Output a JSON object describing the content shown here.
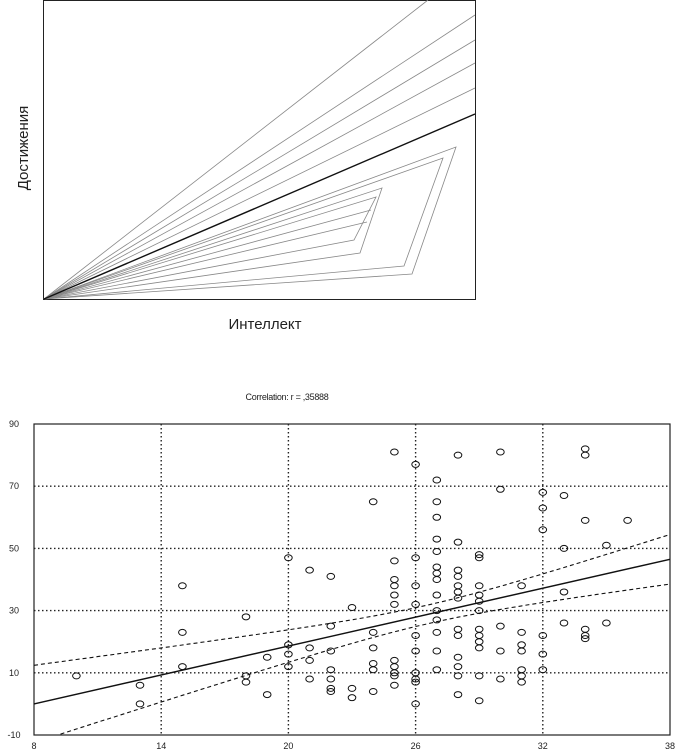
{
  "chart_data": [
    {
      "type": "line",
      "title": "",
      "xlabel": "Интеллект",
      "ylabel": "Достижения",
      "description": "Conceptual diagram: fan of lines from origin; the bold line is the regression line, with nested open triangles below it",
      "grid": false
    },
    {
      "type": "scatter",
      "title": "Correlation: r = ,35888",
      "xlabel": "",
      "ylabel": "",
      "xlim": [
        8,
        38
      ],
      "ylim": [
        -10,
        90
      ],
      "xticks": [
        "8",
        "14",
        "20",
        "26",
        "32",
        "38"
      ],
      "yticks": [
        "-10",
        "10",
        "30",
        "50",
        "70",
        "90"
      ],
      "grid": true,
      "regression": {
        "slope": 1.55,
        "intercept": -12.4
      },
      "confidence_band": "95%",
      "points": [
        [
          10,
          9
        ],
        [
          13,
          6
        ],
        [
          13,
          0
        ],
        [
          15,
          38
        ],
        [
          15,
          23
        ],
        [
          15,
          12
        ],
        [
          18,
          28
        ],
        [
          18,
          9
        ],
        [
          18,
          7
        ],
        [
          19,
          15
        ],
        [
          19,
          3
        ],
        [
          20,
          47
        ],
        [
          20,
          19
        ],
        [
          20,
          16
        ],
        [
          20,
          12
        ],
        [
          21,
          43
        ],
        [
          21,
          18
        ],
        [
          21,
          14
        ],
        [
          21,
          8
        ],
        [
          22,
          41
        ],
        [
          22,
          25
        ],
        [
          22,
          17
        ],
        [
          22,
          11
        ],
        [
          22,
          8
        ],
        [
          22,
          5
        ],
        [
          22,
          4
        ],
        [
          23,
          31
        ],
        [
          23,
          5
        ],
        [
          23,
          2
        ],
        [
          24,
          65
        ],
        [
          24,
          23
        ],
        [
          24,
          18
        ],
        [
          24,
          13
        ],
        [
          24,
          11
        ],
        [
          24,
          4
        ],
        [
          25,
          81
        ],
        [
          25,
          46
        ],
        [
          25,
          40
        ],
        [
          25,
          38
        ],
        [
          25,
          35
        ],
        [
          25,
          32
        ],
        [
          25,
          14
        ],
        [
          25,
          12
        ],
        [
          25,
          10
        ],
        [
          25,
          9
        ],
        [
          25,
          6
        ],
        [
          26,
          77
        ],
        [
          26,
          47
        ],
        [
          26,
          38
        ],
        [
          26,
          32
        ],
        [
          26,
          22
        ],
        [
          26,
          17
        ],
        [
          26,
          10
        ],
        [
          26,
          8
        ],
        [
          26,
          7
        ],
        [
          26,
          0
        ],
        [
          27,
          72
        ],
        [
          27,
          65
        ],
        [
          27,
          60
        ],
        [
          27,
          53
        ],
        [
          27,
          49
        ],
        [
          27,
          44
        ],
        [
          27,
          42
        ],
        [
          27,
          40
        ],
        [
          27,
          35
        ],
        [
          27,
          30
        ],
        [
          27,
          27
        ],
        [
          27,
          23
        ],
        [
          27,
          17
        ],
        [
          27,
          11
        ],
        [
          28,
          80
        ],
        [
          28,
          52
        ],
        [
          28,
          43
        ],
        [
          28,
          41
        ],
        [
          28,
          38
        ],
        [
          28,
          36
        ],
        [
          28,
          34
        ],
        [
          28,
          24
        ],
        [
          28,
          22
        ],
        [
          28,
          15
        ],
        [
          28,
          12
        ],
        [
          28,
          9
        ],
        [
          28,
          3
        ],
        [
          29,
          48
        ],
        [
          29,
          47
        ],
        [
          29,
          38
        ],
        [
          29,
          35
        ],
        [
          29,
          33
        ],
        [
          29,
          30
        ],
        [
          29,
          24
        ],
        [
          29,
          22
        ],
        [
          29,
          20
        ],
        [
          29,
          18
        ],
        [
          29,
          9
        ],
        [
          29,
          1
        ],
        [
          30,
          81
        ],
        [
          30,
          69
        ],
        [
          30,
          25
        ],
        [
          30,
          17
        ],
        [
          30,
          8
        ],
        [
          31,
          38
        ],
        [
          31,
          23
        ],
        [
          31,
          19
        ],
        [
          31,
          17
        ],
        [
          31,
          11
        ],
        [
          31,
          9
        ],
        [
          31,
          7
        ],
        [
          32,
          68
        ],
        [
          32,
          63
        ],
        [
          32,
          56
        ],
        [
          32,
          22
        ],
        [
          32,
          16
        ],
        [
          32,
          11
        ],
        [
          33,
          67
        ],
        [
          33,
          50
        ],
        [
          33,
          36
        ],
        [
          33,
          26
        ],
        [
          34,
          82
        ],
        [
          34,
          80
        ],
        [
          34,
          59
        ],
        [
          34,
          24
        ],
        [
          34,
          22
        ],
        [
          34,
          21
        ],
        [
          35,
          51
        ],
        [
          35,
          26
        ],
        [
          36,
          59
        ]
      ]
    }
  ]
}
